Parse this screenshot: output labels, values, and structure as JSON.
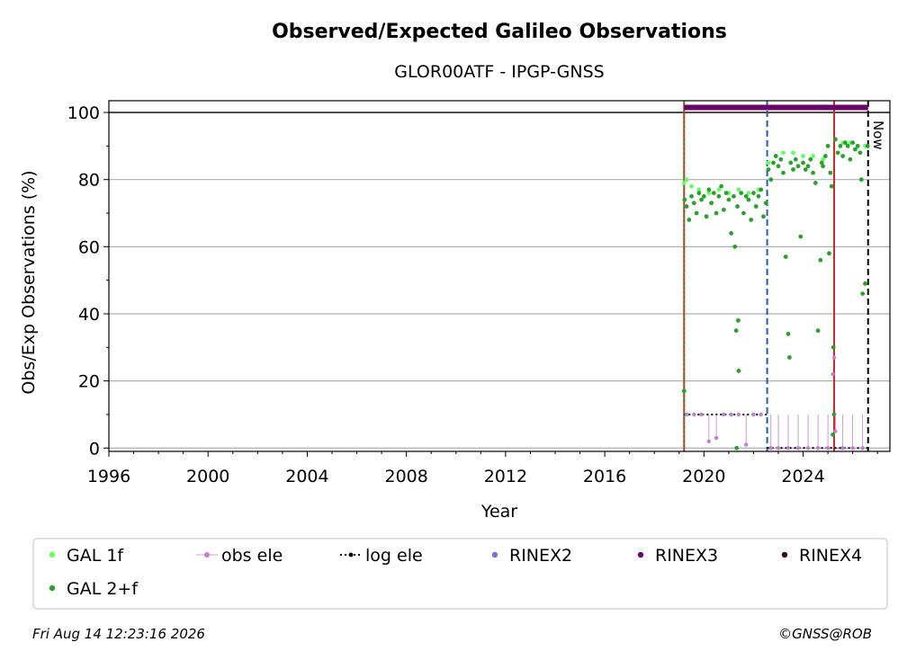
{
  "chart_data": {
    "type": "scatter",
    "title": "Observed/Expected Galileo Observations",
    "subtitle": "GLOR00ATF - IPGP-GNSS",
    "xlabel": "Year",
    "ylabel": "Obs/Exp Observations (%)",
    "xlim": [
      1996,
      2027.5
    ],
    "ylim": [
      -1,
      103.5
    ],
    "x_ticks": [
      1996,
      2000,
      2004,
      2008,
      2012,
      2016,
      2020,
      2024
    ],
    "y_ticks": [
      0,
      20,
      40,
      60,
      80,
      100
    ],
    "grid": "horizontal",
    "reference_line_y": 100,
    "legend_position": "bottom",
    "legend": [
      {
        "label": "GAL 1f",
        "marker": "dot",
        "color": "#66ff66"
      },
      {
        "label": "obs ele",
        "marker": "line-dot",
        "color": "#c080d0"
      },
      {
        "label": "log ele",
        "marker": "dotted-line",
        "color": "#000000"
      },
      {
        "label": "RINEX2",
        "marker": "dot",
        "color": "#7f70c0"
      },
      {
        "label": "RINEX3",
        "marker": "dot",
        "color": "#6a006a"
      },
      {
        "label": "RINEX4",
        "marker": "dot",
        "color": "#2a0a2a"
      },
      {
        "label": "GAL 2+f",
        "marker": "dot",
        "color": "#2ca02c"
      }
    ],
    "vertical_events": [
      {
        "x": 2019.2,
        "color": "#d62728",
        "style": "solid"
      },
      {
        "x": 2019.2,
        "color": "#2ca02c",
        "style": "dotted"
      },
      {
        "x": 2022.55,
        "color": "#1f5fa8",
        "style": "dashed"
      },
      {
        "x": 2025.25,
        "color": "#d62728",
        "style": "solid"
      },
      {
        "x": 2026.62,
        "color": "#000000",
        "style": "dashed",
        "label": "Now"
      }
    ],
    "rinex3_band": {
      "x": [
        2019.2,
        2026.62
      ],
      "y": 101.5,
      "color": "#6a006a"
    },
    "log_ele": [
      {
        "x": [
          2019.2,
          2022.55
        ],
        "y": 10
      },
      {
        "x": [
          2022.55,
          2026.62
        ],
        "y": 0
      }
    ],
    "series": [
      {
        "name": "GAL 1f",
        "color": "#66ff66",
        "x": [
          2019.2,
          2019.3,
          2019.5,
          2019.8,
          2020.2,
          2020.6,
          2021.0,
          2021.4,
          2021.8,
          2022.2,
          2022.6,
          2022.9,
          2023.2,
          2023.6,
          2024.0,
          2024.4,
          2024.8,
          2025.3,
          2025.6,
          2025.9,
          2026.2,
          2026.5
        ],
        "y": [
          79,
          80,
          78,
          77,
          76,
          77,
          76,
          77,
          76,
          77,
          85,
          87,
          88,
          88,
          87,
          87,
          86,
          92,
          91,
          91,
          90,
          90
        ]
      },
      {
        "name": "GAL 2+f",
        "color": "#2ca02c",
        "x": [
          2019.2,
          2019.22,
          2019.3,
          2019.4,
          2019.5,
          2019.6,
          2019.7,
          2019.8,
          2019.9,
          2020.0,
          2020.1,
          2020.2,
          2020.3,
          2020.4,
          2020.5,
          2020.6,
          2020.7,
          2020.8,
          2020.9,
          2021.0,
          2021.1,
          2021.2,
          2021.25,
          2021.3,
          2021.32,
          2021.35,
          2021.38,
          2021.4,
          2021.5,
          2021.6,
          2021.7,
          2021.8,
          2021.9,
          2022.0,
          2022.1,
          2022.2,
          2022.3,
          2022.4,
          2022.5,
          2022.6,
          2022.7,
          2022.8,
          2022.9,
          2023.0,
          2023.1,
          2023.2,
          2023.3,
          2023.4,
          2023.45,
          2023.5,
          2023.6,
          2023.7,
          2023.8,
          2023.9,
          2024.0,
          2024.1,
          2024.2,
          2024.3,
          2024.4,
          2024.5,
          2024.6,
          2024.7,
          2024.75,
          2024.8,
          2024.9,
          2025.0,
          2025.05,
          2025.1,
          2025.15,
          2025.2,
          2025.22,
          2025.25,
          2025.3,
          2025.4,
          2025.5,
          2025.6,
          2025.7,
          2025.8,
          2025.9,
          2026.0,
          2026.1,
          2026.2,
          2026.3,
          2026.35,
          2026.4,
          2026.5,
          2026.6
        ],
        "y": [
          17,
          74,
          72,
          68,
          75,
          73,
          70,
          76,
          74,
          75,
          69,
          77,
          73,
          76,
          70,
          75,
          78,
          71,
          76,
          74,
          64,
          75,
          60,
          35,
          0,
          72,
          38,
          23,
          76,
          70,
          75,
          74,
          68,
          76,
          72,
          75,
          77,
          69,
          73,
          83,
          80,
          85,
          87,
          84,
          86,
          82,
          57,
          34,
          27,
          85,
          83,
          86,
          84,
          63,
          85,
          83,
          84,
          86,
          82,
          79,
          35,
          56,
          85,
          84,
          87,
          90,
          58,
          82,
          78,
          4,
          30,
          10,
          92,
          88,
          90,
          87,
          91,
          90,
          86,
          91,
          89,
          90,
          88,
          80,
          46,
          49,
          90
        ]
      },
      {
        "name": "obs ele",
        "color": "#c080d0",
        "x": [
          2019.3,
          2019.6,
          2019.9,
          2020.2,
          2020.5,
          2020.8,
          2021.1,
          2021.4,
          2021.7,
          2022.0,
          2022.3,
          2022.7,
          2023.0,
          2023.4,
          2023.8,
          2024.2,
          2024.6,
          2025.0,
          2025.2,
          2025.25,
          2025.3,
          2025.6,
          2026.0,
          2026.4
        ],
        "y": [
          10,
          10,
          10,
          2,
          3,
          10,
          10,
          10,
          1,
          10,
          10,
          0,
          0,
          0,
          0,
          0,
          0,
          0,
          22,
          27,
          5,
          0,
          0,
          0
        ]
      }
    ]
  },
  "footer": {
    "timestamp": "Fri Aug 14 12:23:16 2026",
    "credit": "©GNSS@ROB"
  }
}
